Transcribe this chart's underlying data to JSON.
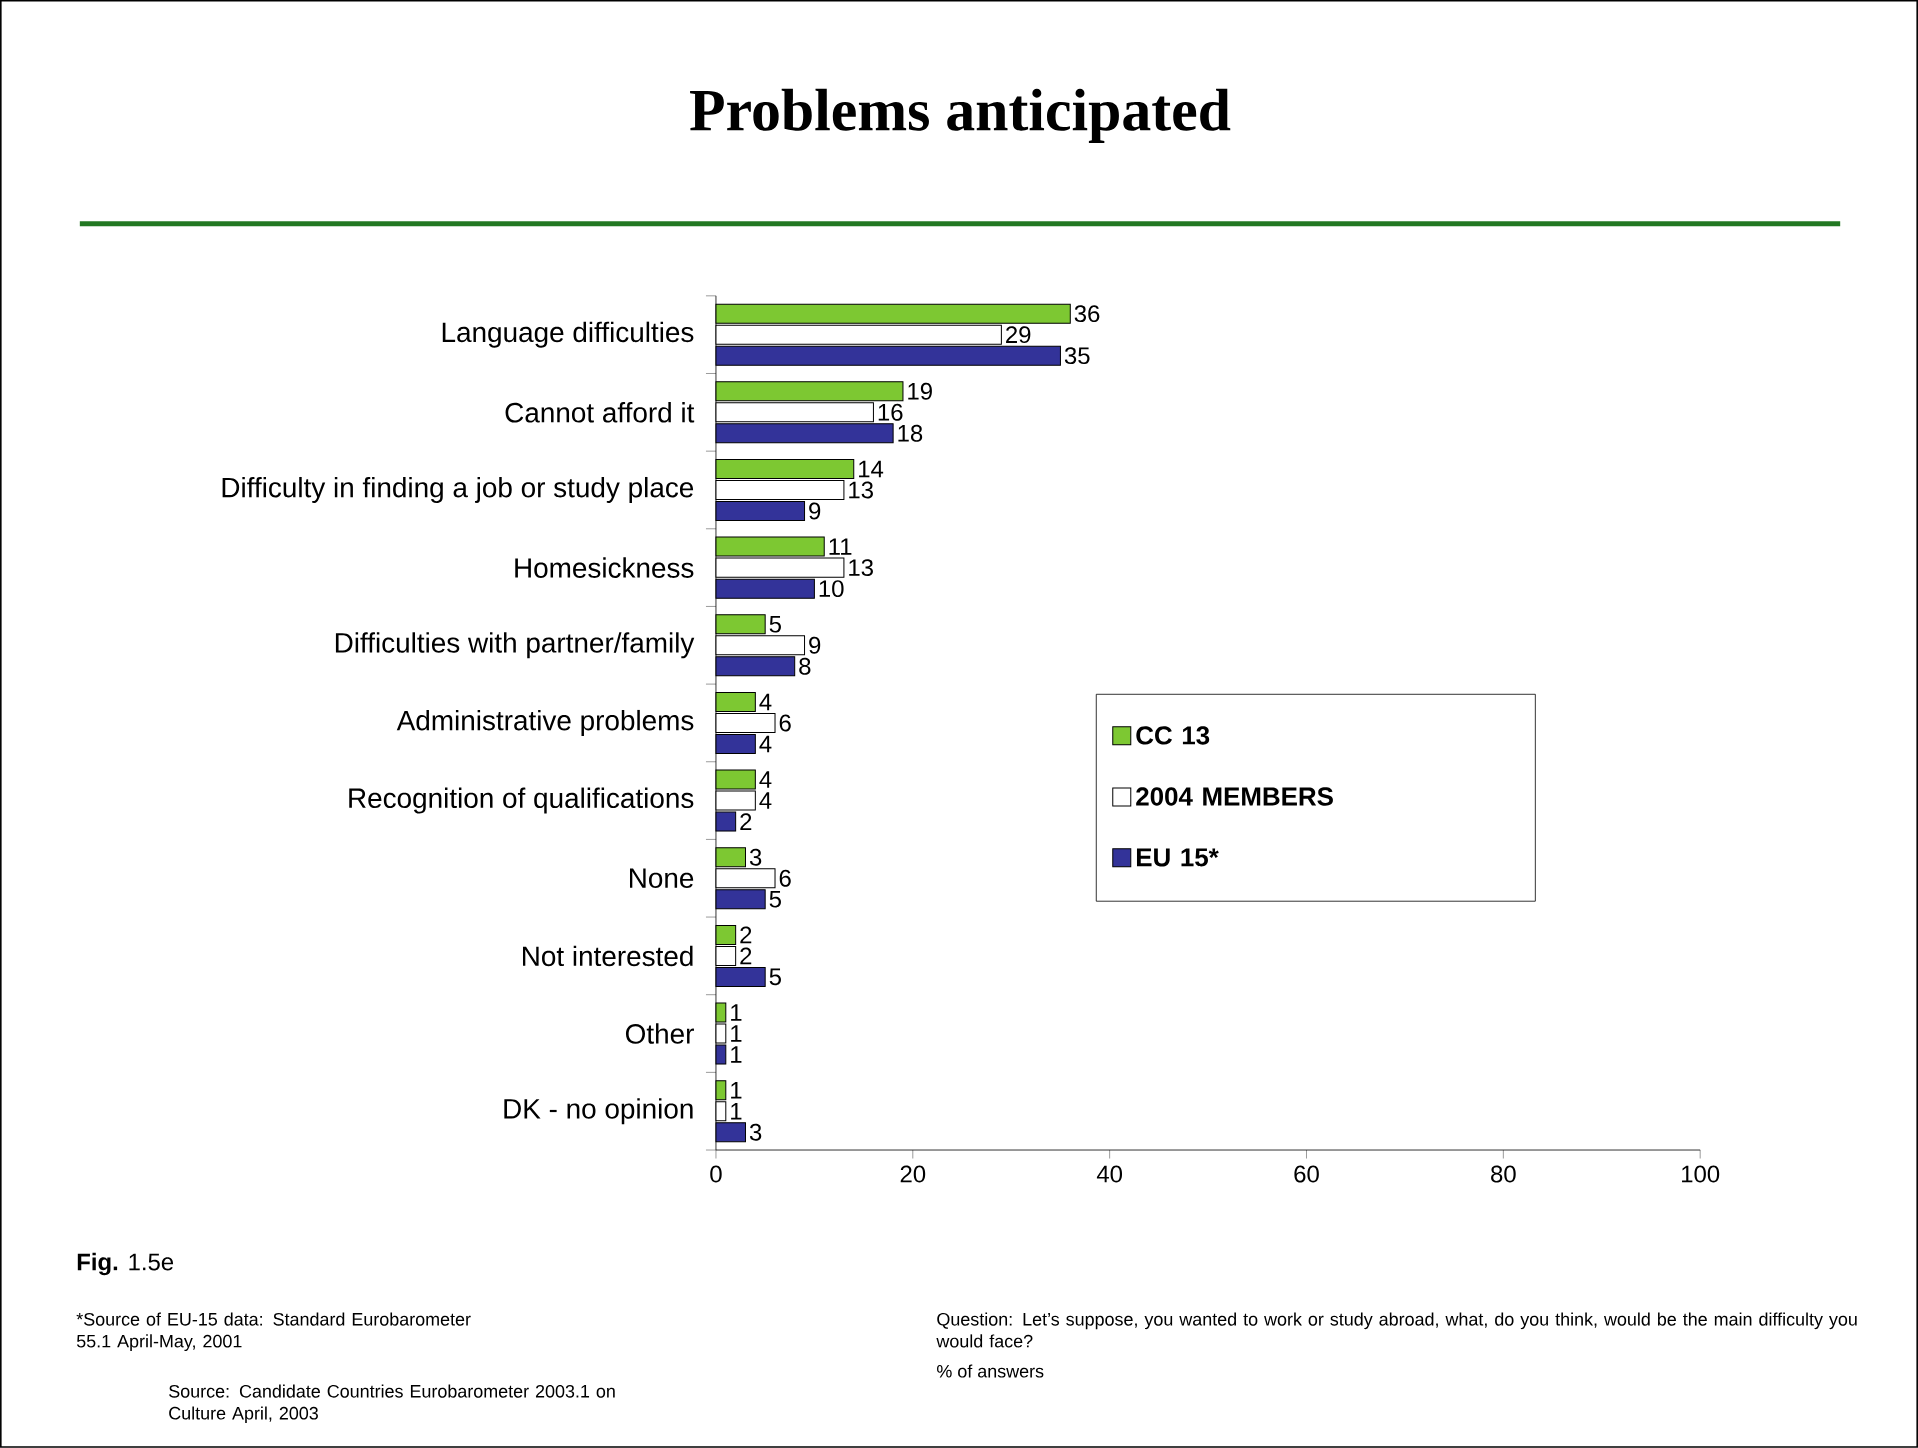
{
  "chart_data": {
    "type": "bar",
    "orientation": "horizontal",
    "title": "Problems anticipated",
    "categories": [
      "Language difficulties",
      "Cannot afford it",
      "Difficulty in finding a job or study place",
      "Homesickness",
      "Difficulties with partner/family",
      "Administrative problems",
      "Recognition of qualifications",
      "None",
      "Not interested",
      "Other",
      "DK - no opinion"
    ],
    "series": [
      {
        "name": "CC 13",
        "color": "#7dc832",
        "values": [
          36,
          19,
          14,
          11,
          5,
          4,
          4,
          3,
          2,
          1,
          1
        ]
      },
      {
        "name": "2004 MEMBERS",
        "color": "#ffffff",
        "values": [
          29,
          16,
          13,
          13,
          9,
          6,
          4,
          6,
          2,
          1,
          1
        ]
      },
      {
        "name": "EU 15*",
        "color": "#333399",
        "values": [
          35,
          18,
          9,
          10,
          8,
          4,
          2,
          5,
          5,
          1,
          3
        ]
      }
    ],
    "xlim": [
      0,
      100
    ],
    "xticks": [
      0,
      20,
      40,
      60,
      80,
      100
    ],
    "data_labels": true,
    "legend": "right",
    "annotations": [
      "**Fig.** 1.5e",
      "*Source of EU-15 data: Standard Eurobarometer 55.1 April-May, 2001",
      "Source: Candidate Countries Eurobarometer 2003.1 on Culture April, 2003",
      "Question:  Let’s suppose, you wanted to work or  study  abroad, what, do you think, would be the main difficulty you would face?",
      "% of answers"
    ]
  }
}
